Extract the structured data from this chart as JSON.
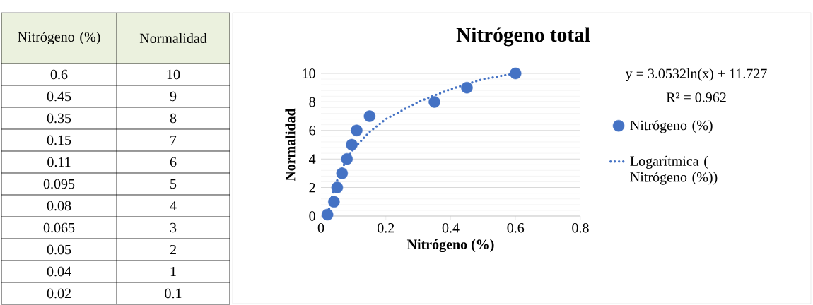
{
  "chart_data": [
    {
      "type": "other",
      "annotations": [
        "Nitrógeno (%)",
        "Normalidad",
        "0.6",
        "10",
        "0.45",
        "9",
        "0.35",
        "8",
        "0.15",
        "7",
        "0.11",
        "6",
        "0.095",
        "5",
        "0.08",
        "4",
        "0.065",
        "3",
        "0.05",
        "2",
        "0.04",
        "1",
        "0.02",
        "0.1"
      ]
    },
    {
      "type": "scatter",
      "title": "Nitrógeno total",
      "xlabel": "Nitrógeno (%)",
      "ylabel": "Normalidad",
      "annotations": [
        "y = 3.0532ln(x) + 11.727",
        "R² = 0.962"
      ],
      "series": [
        {
          "name": "Nitrógeno (%)",
          "color": "#4472c4",
          "marker": "circle",
          "x": [
            0.02,
            0.04,
            0.05,
            0.065,
            0.08,
            0.095,
            0.11,
            0.15,
            0.35,
            0.45,
            0.6
          ],
          "values": [
            0.1,
            1,
            2,
            3,
            4,
            5,
            6,
            7,
            8,
            9,
            10
          ]
        },
        {
          "name": "Logarítmica ( Nitrógeno (%))",
          "type": "line",
          "color": "#4472c4",
          "marker": "none",
          "line_style": "dotted",
          "x": [
            0.025,
            0.04,
            0.06,
            0.08,
            0.1,
            0.15,
            0.2,
            0.3,
            0.4,
            0.5,
            0.6
          ],
          "values": [
            0.5,
            1.9,
            3.1,
            4.0,
            4.7,
            5.9,
            6.8,
            8.0,
            8.9,
            9.6,
            10
          ]
        }
      ],
      "xlim": [
        0,
        0.8
      ],
      "ylim": [
        0,
        10
      ],
      "xticks": [
        0,
        0.2,
        0.4,
        0.6,
        0.8
      ],
      "yticks": [
        0,
        2,
        4,
        6,
        8,
        10
      ],
      "grid": "y",
      "legend": "right"
    }
  ]
}
